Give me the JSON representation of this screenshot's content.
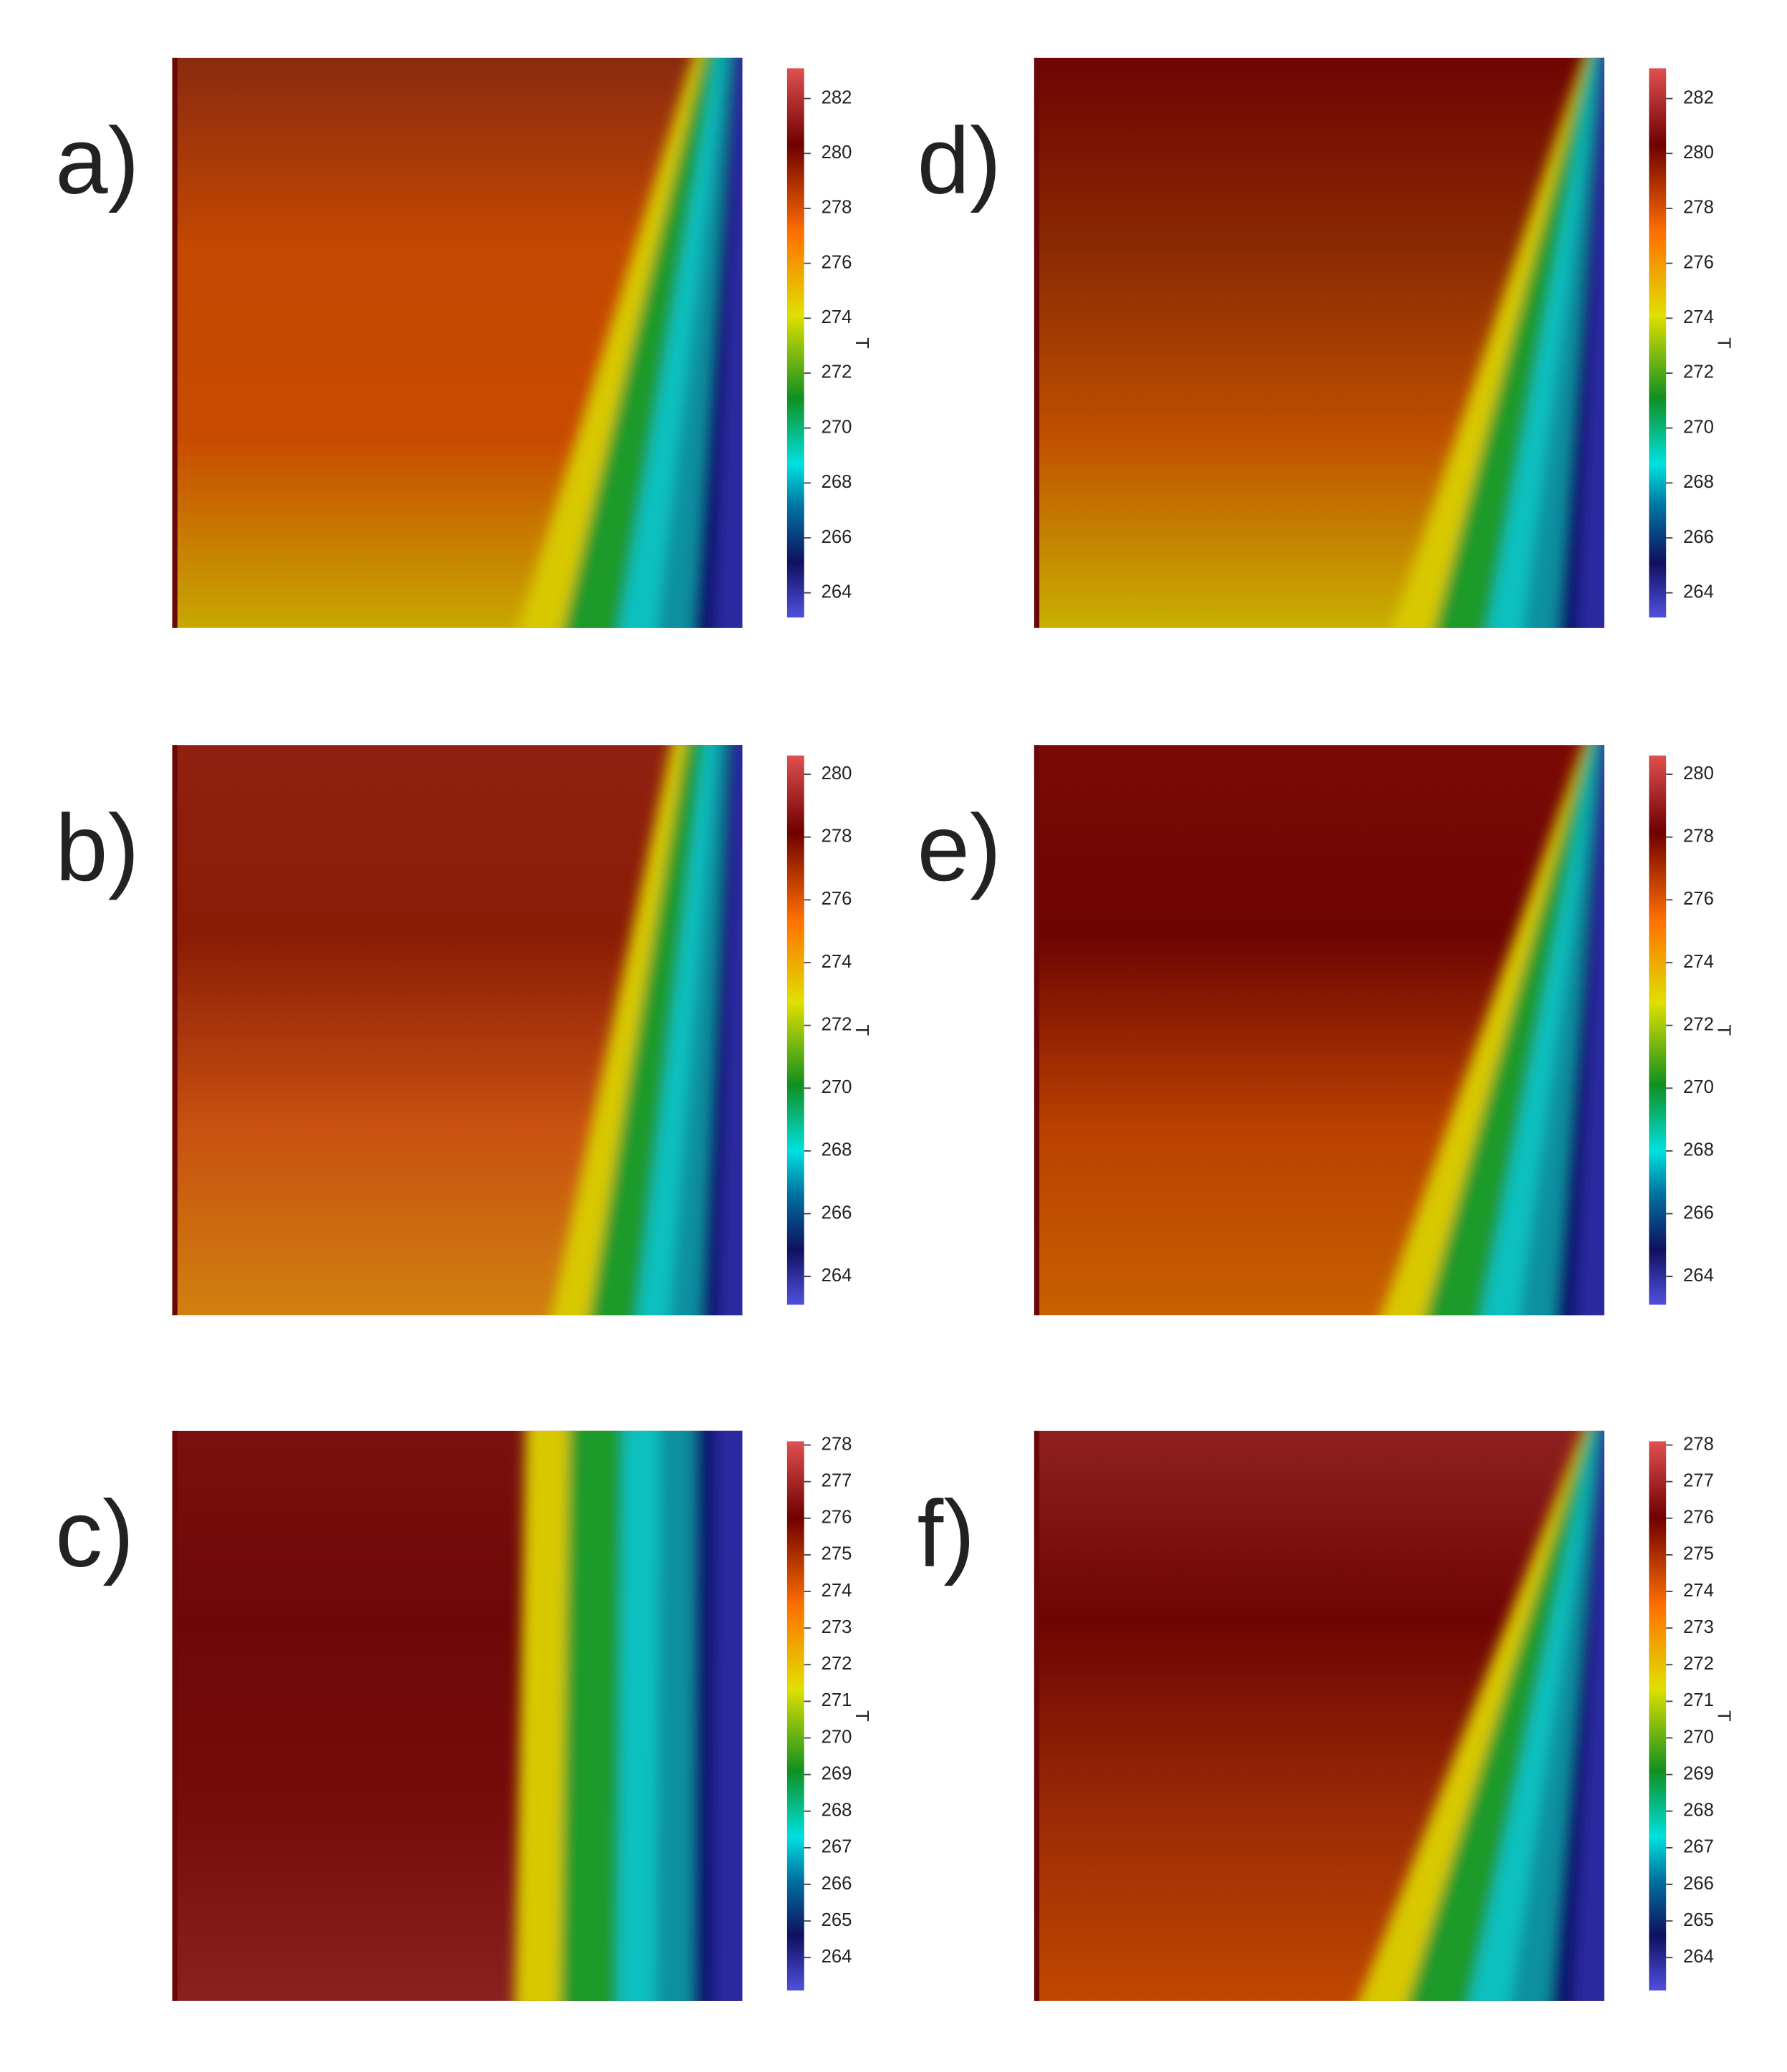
{
  "panels": [
    {
      "label": "a)",
      "colorbar": {
        "title": "T",
        "range": [
          263.1,
          283.1
        ],
        "ticks": [
          264,
          266,
          268,
          270,
          272,
          274,
          276,
          278,
          280,
          282
        ]
      }
    },
    {
      "label": "b)",
      "colorbar": {
        "title": "T",
        "range": [
          263.1,
          280.6
        ],
        "ticks": [
          264,
          266,
          268,
          270,
          272,
          274,
          276,
          278,
          280
        ]
      }
    },
    {
      "label": "c)",
      "colorbar": {
        "title": "T",
        "range": [
          263.1,
          278.1
        ],
        "ticks": [
          264,
          265,
          266,
          267,
          268,
          269,
          270,
          271,
          272,
          273,
          274,
          275,
          276,
          277,
          278
        ]
      }
    },
    {
      "label": "d)",
      "colorbar": {
        "title": "T",
        "range": [
          263.1,
          283.1
        ],
        "ticks": [
          264,
          266,
          268,
          270,
          272,
          274,
          276,
          278,
          280,
          282
        ]
      }
    },
    {
      "label": "e)",
      "colorbar": {
        "title": "T",
        "range": [
          263.1,
          280.6
        ],
        "ticks": [
          264,
          266,
          268,
          270,
          272,
          274,
          276,
          278,
          280
        ]
      }
    },
    {
      "label": "f)",
      "colorbar": {
        "title": "T",
        "range": [
          263.1,
          278.1
        ],
        "ticks": [
          264,
          265,
          266,
          267,
          268,
          269,
          270,
          271,
          272,
          273,
          274,
          275,
          276,
          277,
          278
        ]
      }
    }
  ]
}
